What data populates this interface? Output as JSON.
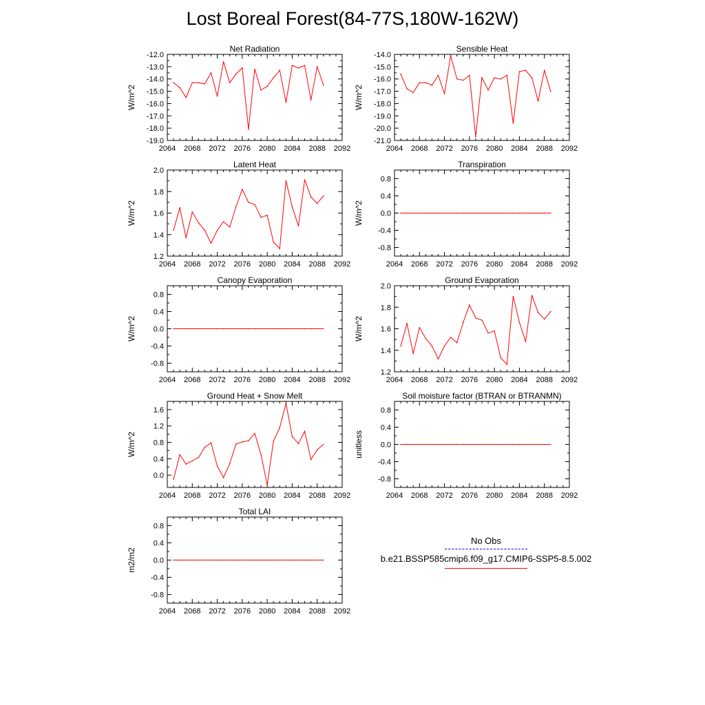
{
  "title": "Lost Boreal Forest(84-77S,180W-162W)",
  "legend": {
    "obs_label": "No Obs",
    "model_label": "b.e21.BSSP585cmip6.f09_g17.CMIP6-SSP5-8.5.002",
    "obs_color": "#0000c8",
    "model_color": "#ff0000"
  },
  "chart_data": [
    {
      "type": "line",
      "title": "Net Radiation",
      "xlabel": "",
      "ylabel": "W/m^2",
      "xlim": [
        2064,
        2092
      ],
      "ylim": [
        -19,
        -12
      ],
      "xticks": [
        2064,
        2068,
        2072,
        2076,
        2080,
        2084,
        2088,
        2092
      ],
      "yticks": [
        -19,
        -18,
        -17,
        -16,
        -15,
        -14,
        -13,
        -12
      ],
      "ytick_labels": [
        "-19.0",
        "-18.0",
        "-17.0",
        "-16.0",
        "-15.0",
        "-14.0",
        "-13.0",
        "-12.0"
      ],
      "x": [
        2065,
        2066,
        2067,
        2068,
        2069,
        2070,
        2071,
        2072,
        2073,
        2074,
        2075,
        2076,
        2077,
        2078,
        2079,
        2080,
        2081,
        2082,
        2083,
        2084,
        2085,
        2086,
        2087,
        2088,
        2089
      ],
      "series": [
        {
          "color": "#ff0000",
          "values": [
            -14.3,
            -14.7,
            -15.5,
            -14.3,
            -14.3,
            -14.4,
            -13.5,
            -15.4,
            -12.6,
            -14.3,
            -13.6,
            -13.1,
            -18.1,
            -13.2,
            -14.9,
            -14.6,
            -13.9,
            -13.3,
            -15.9,
            -12.9,
            -13.1,
            -12.9,
            -15.7,
            -13.0,
            -14.5
          ]
        }
      ]
    },
    {
      "type": "line",
      "title": "Sensible Heat",
      "xlabel": "",
      "ylabel": "W/m^2",
      "xlim": [
        2064,
        2092
      ],
      "ylim": [
        -21,
        -14
      ],
      "xticks": [
        2064,
        2068,
        2072,
        2076,
        2080,
        2084,
        2088,
        2092
      ],
      "yticks": [
        -21,
        -20,
        -19,
        -18,
        -17,
        -16,
        -15,
        -14
      ],
      "ytick_labels": [
        "-21.0",
        "-20.0",
        "-19.0",
        "-18.0",
        "-17.0",
        "-16.0",
        "-15.0",
        "-14.0"
      ],
      "x": [
        2065,
        2066,
        2067,
        2068,
        2069,
        2070,
        2071,
        2072,
        2073,
        2074,
        2075,
        2076,
        2077,
        2078,
        2079,
        2080,
        2081,
        2082,
        2083,
        2084,
        2085,
        2086,
        2087,
        2088,
        2089
      ],
      "series": [
        {
          "color": "#ff0000",
          "values": [
            -15.6,
            -16.8,
            -17.1,
            -16.3,
            -16.3,
            -16.5,
            -15.7,
            -17.2,
            -14.1,
            -16.0,
            -16.1,
            -15.7,
            -20.7,
            -15.9,
            -16.9,
            -15.9,
            -16.0,
            -15.7,
            -19.6,
            -15.4,
            -15.3,
            -15.9,
            -17.8,
            -15.3,
            -17.0
          ]
        }
      ]
    },
    {
      "type": "line",
      "title": "Latent Heat",
      "xlabel": "",
      "ylabel": "W/m^2",
      "xlim": [
        2064,
        2092
      ],
      "ylim": [
        1.2,
        2.0
      ],
      "xticks": [
        2064,
        2068,
        2072,
        2076,
        2080,
        2084,
        2088,
        2092
      ],
      "yticks": [
        1.2,
        1.4,
        1.6,
        1.8,
        2.0
      ],
      "ytick_labels": [
        "1.2",
        "1.4",
        "1.6",
        "1.8",
        "2.0"
      ],
      "x": [
        2065,
        2066,
        2067,
        2068,
        2069,
        2070,
        2071,
        2072,
        2073,
        2074,
        2075,
        2076,
        2077,
        2078,
        2079,
        2080,
        2081,
        2082,
        2083,
        2084,
        2085,
        2086,
        2087,
        2088,
        2089
      ],
      "series": [
        {
          "color": "#ff0000",
          "values": [
            1.44,
            1.65,
            1.37,
            1.61,
            1.51,
            1.44,
            1.32,
            1.44,
            1.52,
            1.47,
            1.66,
            1.82,
            1.7,
            1.68,
            1.56,
            1.58,
            1.33,
            1.27,
            1.9,
            1.66,
            1.48,
            1.91,
            1.75,
            1.69,
            1.76
          ]
        }
      ]
    },
    {
      "type": "line",
      "title": "Transpiration",
      "xlabel": "",
      "ylabel": "W/m^2",
      "xlim": [
        2064,
        2092
      ],
      "ylim": [
        -1,
        1
      ],
      "xticks": [
        2064,
        2068,
        2072,
        2076,
        2080,
        2084,
        2088,
        2092
      ],
      "yticks": [
        -0.8,
        -0.4,
        0.0,
        0.4,
        0.8
      ],
      "ytick_labels": [
        "-0.8",
        "-0.4",
        "0.0",
        "0.4",
        "0.8"
      ],
      "x": [
        2065,
        2066,
        2067,
        2068,
        2069,
        2070,
        2071,
        2072,
        2073,
        2074,
        2075,
        2076,
        2077,
        2078,
        2079,
        2080,
        2081,
        2082,
        2083,
        2084,
        2085,
        2086,
        2087,
        2088,
        2089
      ],
      "series": [
        {
          "color": "#ff0000",
          "values": [
            0,
            0,
            0,
            0,
            0,
            0,
            0,
            0,
            0,
            0,
            0,
            0,
            0,
            0,
            0,
            0,
            0,
            0,
            0,
            0,
            0,
            0,
            0,
            0,
            0
          ]
        }
      ]
    },
    {
      "type": "line",
      "title": "Canopy Evaporation",
      "xlabel": "",
      "ylabel": "W/m^2",
      "xlim": [
        2064,
        2092
      ],
      "ylim": [
        -1,
        1
      ],
      "xticks": [
        2064,
        2068,
        2072,
        2076,
        2080,
        2084,
        2088,
        2092
      ],
      "yticks": [
        -0.8,
        -0.4,
        0.0,
        0.4,
        0.8
      ],
      "ytick_labels": [
        "-0.8",
        "-0.4",
        "0.0",
        "0.4",
        "0.8"
      ],
      "x": [
        2065,
        2066,
        2067,
        2068,
        2069,
        2070,
        2071,
        2072,
        2073,
        2074,
        2075,
        2076,
        2077,
        2078,
        2079,
        2080,
        2081,
        2082,
        2083,
        2084,
        2085,
        2086,
        2087,
        2088,
        2089
      ],
      "series": [
        {
          "color": "#ff0000",
          "values": [
            0,
            0,
            0,
            0,
            0,
            0,
            0,
            0,
            0,
            0,
            0,
            0,
            0,
            0,
            0,
            0,
            0,
            0,
            0,
            0,
            0,
            0,
            0,
            0,
            0
          ]
        }
      ]
    },
    {
      "type": "line",
      "title": "Ground Evaporation",
      "xlabel": "",
      "ylabel": "W/m^2",
      "xlim": [
        2064,
        2092
      ],
      "ylim": [
        1.2,
        2.0
      ],
      "xticks": [
        2064,
        2068,
        2072,
        2076,
        2080,
        2084,
        2088,
        2092
      ],
      "yticks": [
        1.2,
        1.4,
        1.6,
        1.8,
        2.0
      ],
      "ytick_labels": [
        "1.2",
        "1.4",
        "1.6",
        "1.8",
        "2.0"
      ],
      "x": [
        2065,
        2066,
        2067,
        2068,
        2069,
        2070,
        2071,
        2072,
        2073,
        2074,
        2075,
        2076,
        2077,
        2078,
        2079,
        2080,
        2081,
        2082,
        2083,
        2084,
        2085,
        2086,
        2087,
        2088,
        2089
      ],
      "series": [
        {
          "color": "#ff0000",
          "values": [
            1.44,
            1.65,
            1.37,
            1.61,
            1.51,
            1.44,
            1.32,
            1.44,
            1.52,
            1.47,
            1.66,
            1.82,
            1.7,
            1.68,
            1.56,
            1.58,
            1.33,
            1.27,
            1.9,
            1.66,
            1.48,
            1.91,
            1.75,
            1.69,
            1.76
          ]
        }
      ]
    },
    {
      "type": "line",
      "title": "Ground Heat + Snow Melt",
      "xlabel": "",
      "ylabel": "W/m^2",
      "xlim": [
        2064,
        2092
      ],
      "ylim": [
        -0.3,
        1.8
      ],
      "xticks": [
        2064,
        2068,
        2072,
        2076,
        2080,
        2084,
        2088,
        2092
      ],
      "yticks": [
        0.0,
        0.4,
        0.8,
        1.2,
        1.6
      ],
      "ytick_labels": [
        "0.0",
        "0.4",
        "0.8",
        "1.2",
        "1.6"
      ],
      "x": [
        2065,
        2066,
        2067,
        2068,
        2069,
        2070,
        2071,
        2072,
        2073,
        2074,
        2075,
        2076,
        2077,
        2078,
        2079,
        2080,
        2081,
        2082,
        2083,
        2084,
        2085,
        2086,
        2087,
        2088,
        2089
      ],
      "series": [
        {
          "color": "#ff0000",
          "values": [
            -0.1,
            0.5,
            0.27,
            0.35,
            0.43,
            0.68,
            0.79,
            0.22,
            -0.06,
            0.28,
            0.76,
            0.81,
            0.84,
            1.02,
            0.5,
            -0.24,
            0.83,
            1.16,
            1.75,
            0.94,
            0.77,
            1.07,
            0.38,
            0.62,
            0.75
          ]
        }
      ]
    },
    {
      "type": "line",
      "title": "Soil moisture factor (BTRAN or BTRANMN)",
      "xlabel": "",
      "ylabel": "unitless",
      "xlim": [
        2064,
        2092
      ],
      "ylim": [
        -1,
        1
      ],
      "xticks": [
        2064,
        2068,
        2072,
        2076,
        2080,
        2084,
        2088,
        2092
      ],
      "yticks": [
        -0.8,
        -0.4,
        0.0,
        0.4,
        0.8
      ],
      "ytick_labels": [
        "-0.8",
        "-0.4",
        "0.0",
        "0.4",
        "0.8"
      ],
      "x": [
        2065,
        2066,
        2067,
        2068,
        2069,
        2070,
        2071,
        2072,
        2073,
        2074,
        2075,
        2076,
        2077,
        2078,
        2079,
        2080,
        2081,
        2082,
        2083,
        2084,
        2085,
        2086,
        2087,
        2088,
        2089
      ],
      "series": [
        {
          "color": "#ff0000",
          "values": [
            0,
            0,
            0,
            0,
            0,
            0,
            0,
            0,
            0,
            0,
            0,
            0,
            0,
            0,
            0,
            0,
            0,
            0,
            0,
            0,
            0,
            0,
            0,
            0,
            0
          ]
        }
      ]
    },
    {
      "type": "line",
      "title": "Total LAI",
      "xlabel": "",
      "ylabel": "m2/m2",
      "xlim": [
        2064,
        2092
      ],
      "ylim": [
        -1,
        1
      ],
      "xticks": [
        2064,
        2068,
        2072,
        2076,
        2080,
        2084,
        2088,
        2092
      ],
      "yticks": [
        -0.8,
        -0.4,
        0.0,
        0.4,
        0.8
      ],
      "ytick_labels": [
        "-0.8",
        "-0.4",
        "0.0",
        "0.4",
        "0.8"
      ],
      "x": [
        2065,
        2066,
        2067,
        2068,
        2069,
        2070,
        2071,
        2072,
        2073,
        2074,
        2075,
        2076,
        2077,
        2078,
        2079,
        2080,
        2081,
        2082,
        2083,
        2084,
        2085,
        2086,
        2087,
        2088,
        2089
      ],
      "series": [
        {
          "color": "#ff0000",
          "values": [
            0,
            0,
            0,
            0,
            0,
            0,
            0,
            0,
            0,
            0,
            0,
            0,
            0,
            0,
            0,
            0,
            0,
            0,
            0,
            0,
            0,
            0,
            0,
            0,
            0
          ]
        }
      ]
    }
  ]
}
